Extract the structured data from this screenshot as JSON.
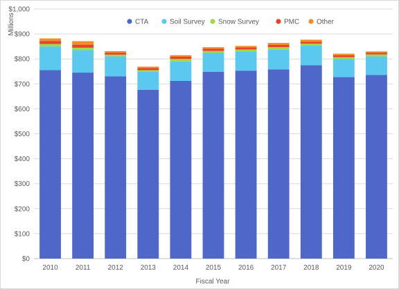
{
  "chart_data": {
    "type": "bar",
    "stacked": true,
    "title": "",
    "xlabel": "Fiscal Year",
    "ylabel": "Millions",
    "ylim": [
      0,
      1000
    ],
    "y_tick_step": 100,
    "y_tick_format": "currency",
    "grid": "horizontal",
    "legend_position": "top",
    "categories": [
      "2010",
      "2011",
      "2012",
      "2013",
      "2014",
      "2015",
      "2016",
      "2017",
      "2018",
      "2019",
      "2020"
    ],
    "series": [
      {
        "name": "CTA",
        "color": "#4f67c9",
        "values": [
          755,
          745,
          730,
          676,
          712,
          748,
          753,
          758,
          775,
          727,
          736
        ]
      },
      {
        "name": "Soil Survey",
        "color": "#5bc8ef",
        "values": [
          95,
          90,
          80,
          72,
          78,
          76,
          77,
          79,
          78,
          73,
          74
        ]
      },
      {
        "name": "Snow Survey",
        "color": "#a0d84a",
        "values": [
          10,
          10,
          7,
          7,
          10,
          8,
          8,
          10,
          8,
          7,
          8
        ]
      },
      {
        "name": "PMC",
        "color": "#e8412c",
        "values": [
          12,
          12,
          8,
          8,
          9,
          9,
          8,
          9,
          8,
          8,
          7
        ]
      },
      {
        "name": "Other",
        "color": "#f28c28",
        "values": [
          10,
          14,
          6,
          6,
          6,
          6,
          6,
          8,
          8,
          6,
          5
        ]
      }
    ]
  }
}
